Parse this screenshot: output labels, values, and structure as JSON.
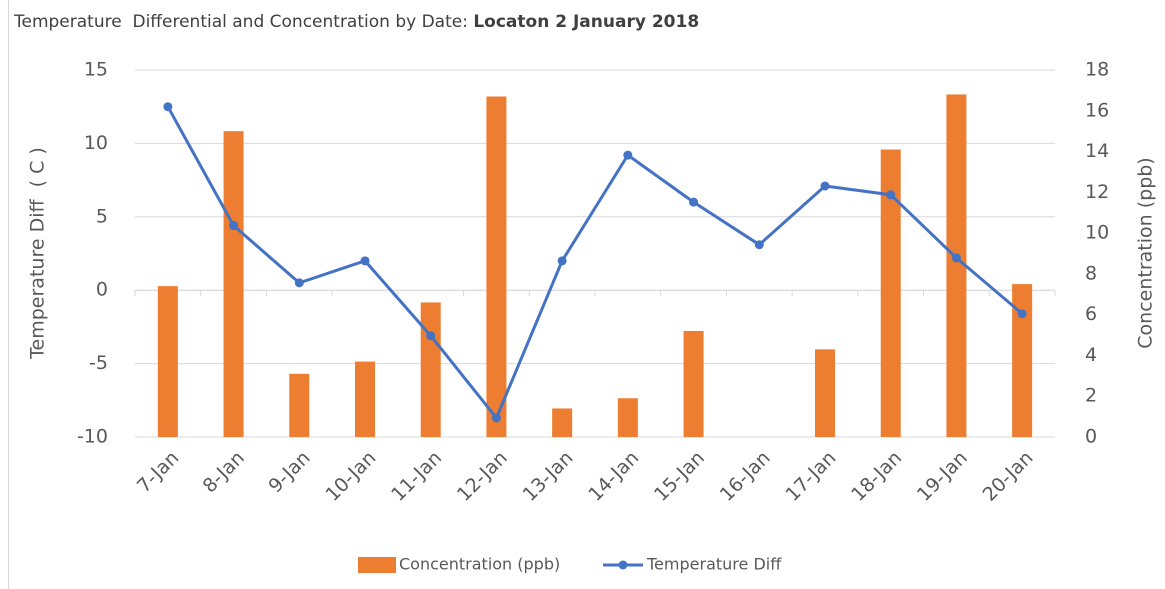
{
  "chart_data": {
    "type": "bar-line",
    "title": [
      "Temperature  Differential and Concentration by Date: ",
      "Locaton 2 January 2018"
    ],
    "y_label": "Temperature Diff  ( C )",
    "y2_label": "Concentration (ppb)",
    "categories": [
      "7-Jan",
      "8-Jan",
      "9-Jan",
      "10-Jan",
      "11-Jan",
      "12-Jan",
      "13-Jan",
      "14-Jan",
      "15-Jan",
      "16-Jan",
      "17-Jan",
      "18-Jan",
      "19-Jan",
      "20-Jan"
    ],
    "series": [
      {
        "name": "Concentration (ppb)",
        "type": "bar",
        "axis": "y2",
        "color": "#ed7d31",
        "values": [
          7.4,
          15.0,
          3.1,
          3.7,
          6.6,
          16.7,
          1.4,
          1.9,
          5.2,
          null,
          4.3,
          14.1,
          16.8,
          7.5
        ]
      },
      {
        "name": "Temperature Diff",
        "type": "line",
        "color": "#4472c4",
        "values": [
          12.5,
          4.4,
          0.5,
          2.0,
          -3.1,
          -8.7,
          2.0,
          9.2,
          6.0,
          3.1,
          7.1,
          6.5,
          2.2,
          -1.6
        ]
      }
    ],
    "ylim": [
      -10,
      15
    ],
    "yticks": [
      -10,
      -5,
      0,
      5,
      10,
      15
    ],
    "y2lim": [
      0,
      18
    ],
    "y2ticks": [
      0,
      2,
      4,
      6,
      8,
      10,
      12,
      14,
      16,
      18
    ],
    "grid": true,
    "legend": "bottom"
  }
}
